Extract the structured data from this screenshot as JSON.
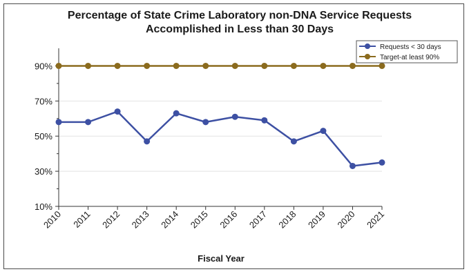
{
  "chart_data": {
    "type": "line",
    "title": [
      "Percentage of State Crime Laboratory non-DNA Service Requests",
      "Accomplished in Less than 30 Days"
    ],
    "xlabel": "Fiscal Year",
    "ylabel": "",
    "categories": [
      "2010",
      "2011",
      "2012",
      "2013",
      "2014",
      "2015",
      "2016",
      "2017",
      "2018",
      "2019",
      "2020",
      "2021"
    ],
    "ylim": [
      10,
      100
    ],
    "yticks": [
      10,
      30,
      50,
      70,
      90
    ],
    "ytick_labels": [
      "10%",
      "30%",
      "50%",
      "70%",
      "90%"
    ],
    "grid": "horizontal",
    "legend_position": "top-right",
    "series": [
      {
        "name": "Requests < 30 days",
        "color": "#3d50a3",
        "values": [
          58,
          58,
          64,
          47,
          63,
          58,
          61,
          59,
          47,
          53,
          33,
          35
        ]
      },
      {
        "name": "Target-at least 90%",
        "color": "#8b6b1e",
        "values": [
          90,
          90,
          90,
          90,
          90,
          90,
          90,
          90,
          90,
          90,
          90,
          90
        ]
      }
    ]
  }
}
